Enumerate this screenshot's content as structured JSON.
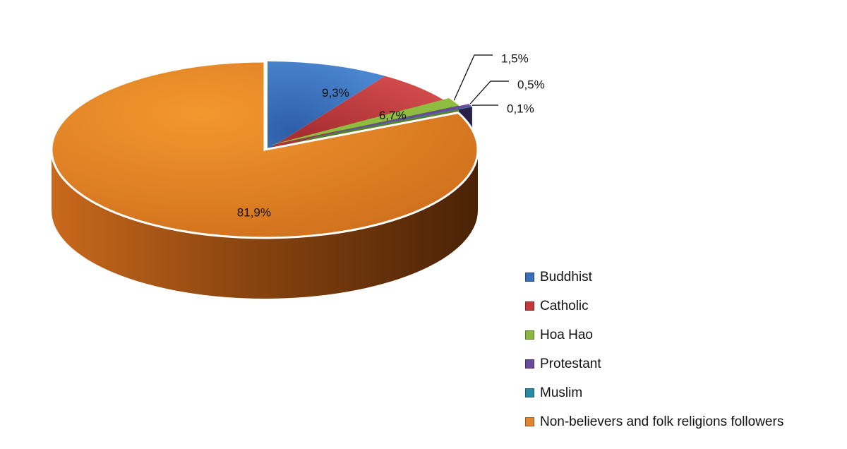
{
  "chart_data": {
    "type": "pie",
    "title": "",
    "categories": [
      "Buddhist",
      "Catholic",
      "Hoa Hao",
      "Protestant",
      "Muslim",
      "Non-believers and folk religions followers"
    ],
    "values": [
      9.3,
      6.7,
      1.5,
      0.5,
      0.1,
      81.9
    ],
    "value_labels": [
      "9,3%",
      "6,7%",
      "1,5%",
      "0,5%",
      "0,1%",
      "81,9%"
    ],
    "colors": [
      "#3b6fb6",
      "#c0393b",
      "#8bb840",
      "#6a4a9c",
      "#2a8aa6",
      "#e0852f"
    ],
    "legend_position": "bottom-right",
    "style": "3d-exploded-pie"
  }
}
